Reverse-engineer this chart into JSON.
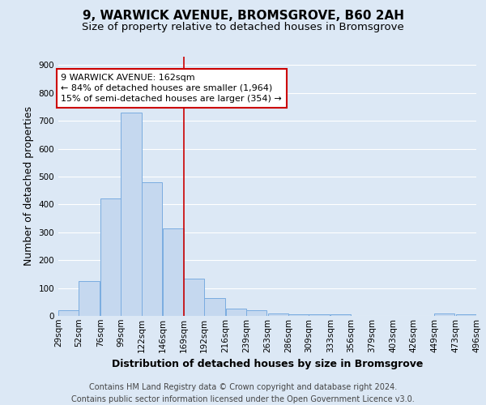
{
  "title": "9, WARWICK AVENUE, BROMSGROVE, B60 2AH",
  "subtitle": "Size of property relative to detached houses in Bromsgrove",
  "xlabel": "Distribution of detached houses by size in Bromsgrove",
  "ylabel": "Number of detached properties",
  "bar_left_edges": [
    29,
    52,
    76,
    99,
    122,
    146,
    169,
    192,
    216,
    239,
    263,
    286,
    309,
    333,
    356,
    379,
    403,
    426,
    449,
    473
  ],
  "bar_heights": [
    20,
    125,
    420,
    730,
    480,
    315,
    133,
    65,
    27,
    20,
    10,
    7,
    5,
    5,
    0,
    0,
    0,
    0,
    8,
    5
  ],
  "bin_width": 23,
  "bar_color": "#c5d8ef",
  "bar_edgecolor": "#7aace0",
  "reference_line_x": 169,
  "reference_line_color": "#cc0000",
  "ylim": [
    0,
    930
  ],
  "yticks": [
    0,
    100,
    200,
    300,
    400,
    500,
    600,
    700,
    800,
    900
  ],
  "xtick_labels": [
    "29sqm",
    "52sqm",
    "76sqm",
    "99sqm",
    "122sqm",
    "146sqm",
    "169sqm",
    "192sqm",
    "216sqm",
    "239sqm",
    "263sqm",
    "286sqm",
    "309sqm",
    "333sqm",
    "356sqm",
    "379sqm",
    "403sqm",
    "426sqm",
    "449sqm",
    "473sqm",
    "496sqm"
  ],
  "annotation_text": "9 WARWICK AVENUE: 162sqm\n← 84% of detached houses are smaller (1,964)\n15% of semi-detached houses are larger (354) →",
  "annotation_box_color": "#ffffff",
  "annotation_box_edgecolor": "#cc0000",
  "footer_line1": "Contains HM Land Registry data © Crown copyright and database right 2024.",
  "footer_line2": "Contains public sector information licensed under the Open Government Licence v3.0.",
  "background_color": "#dce8f5",
  "grid_color": "#ffffff",
  "title_fontsize": 11,
  "subtitle_fontsize": 9.5,
  "axis_label_fontsize": 9,
  "tick_fontsize": 7.5,
  "annotation_fontsize": 8,
  "footer_fontsize": 7
}
